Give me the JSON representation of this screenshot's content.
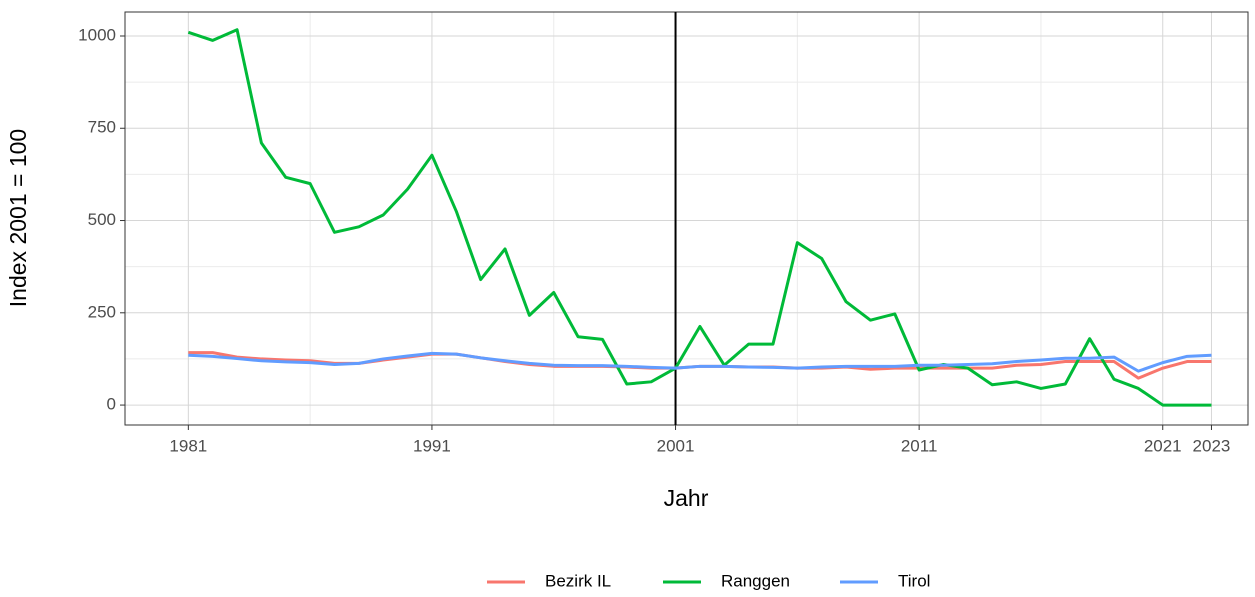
{
  "chart_data": {
    "type": "line",
    "x_label": "Jahr",
    "y_label": "Index 2001 = 100",
    "x": [
      1981,
      1982,
      1983,
      1984,
      1985,
      1986,
      1987,
      1988,
      1989,
      1990,
      1991,
      1992,
      1993,
      1994,
      1995,
      1996,
      1997,
      1998,
      1999,
      2000,
      2001,
      2002,
      2003,
      2004,
      2005,
      2006,
      2007,
      2008,
      2009,
      2010,
      2011,
      2012,
      2013,
      2014,
      2015,
      2016,
      2017,
      2018,
      2019,
      2020,
      2021,
      2022,
      2023
    ],
    "series": [
      {
        "name": "Bezirk IL",
        "color": "#F8766D",
        "values": [
          142,
          142,
          130,
          125,
          122,
          120,
          113,
          113,
          122,
          130,
          138,
          138,
          128,
          118,
          110,
          105,
          105,
          105,
          103,
          100,
          100,
          105,
          105,
          103,
          103,
          100,
          100,
          103,
          97,
          100,
          100,
          100,
          100,
          100,
          108,
          110,
          118,
          118,
          118,
          73,
          100,
          118,
          118
        ]
      },
      {
        "name": "Ranggen",
        "color": "#00BA38",
        "values": [
          1010,
          988,
          1017,
          710,
          617,
          600,
          468,
          483,
          515,
          585,
          677,
          525,
          340,
          423,
          243,
          305,
          185,
          178,
          57,
          63,
          100,
          213,
          108,
          165,
          165,
          440,
          397,
          280,
          230,
          247,
          95,
          110,
          100,
          55,
          63,
          45,
          57,
          180,
          70,
          45,
          0,
          0,
          0
        ]
      },
      {
        "name": "Tirol",
        "color": "#619CFF",
        "values": [
          135,
          132,
          126,
          120,
          117,
          115,
          110,
          113,
          125,
          133,
          140,
          138,
          128,
          120,
          113,
          108,
          107,
          107,
          105,
          102,
          100,
          105,
          105,
          103,
          102,
          100,
          103,
          105,
          105,
          105,
          108,
          108,
          110,
          112,
          118,
          122,
          127,
          127,
          130,
          92,
          115,
          132,
          135
        ]
      }
    ],
    "xlim": [
      1978.4,
      2024.5
    ],
    "xticks": [
      1981,
      1991,
      2001,
      2011,
      2021,
      2023
    ],
    "xticks_minor": [
      1986,
      1996,
      2006,
      2016
    ],
    "ylim": [
      -54,
      1065
    ],
    "yticks": [
      0,
      250,
      500,
      750,
      1000
    ],
    "yticks_minor": [
      125,
      375,
      625,
      875
    ],
    "vline": 2001,
    "grid": true,
    "legend_position": "bottom"
  }
}
